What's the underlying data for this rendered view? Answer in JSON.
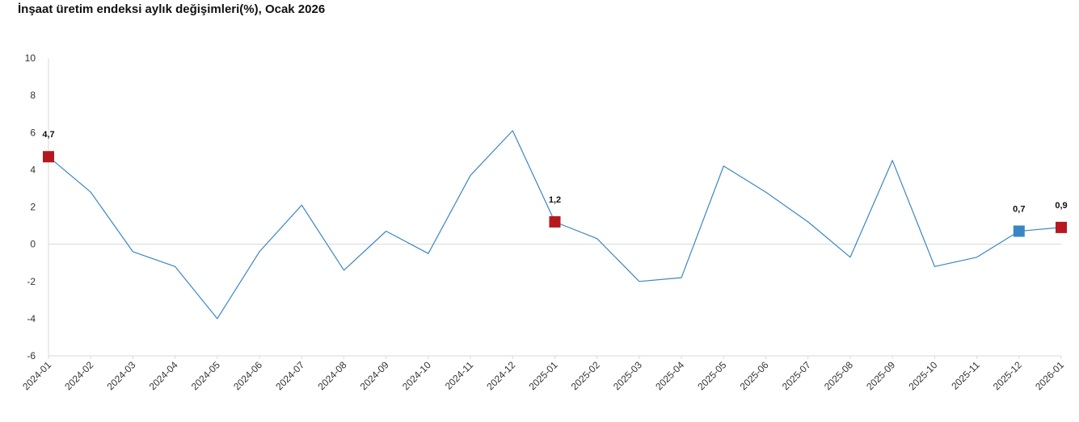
{
  "title": "İnşaat üretim endeksi aylık değişimleri(%), Ocak 2026",
  "chart_data": {
    "type": "line",
    "title": "İnşaat üretim endeksi aylık değişimleri(%), Ocak 2026",
    "xlabel": "",
    "ylabel": "",
    "ylim": [
      -6,
      10
    ],
    "yticks": [
      10,
      8,
      6,
      4,
      2,
      0,
      -2,
      -4,
      -6
    ],
    "ytick_labels": [
      "10",
      "8",
      "6",
      "4",
      "2",
      "0",
      "-2",
      "-4",
      "-6"
    ],
    "grid": false,
    "categories": [
      "2024-01",
      "2024-02",
      "2024-03",
      "2024-04",
      "2024-05",
      "2024-06",
      "2024-07",
      "2024-08",
      "2024-09",
      "2024-10",
      "2024-11",
      "2024-12",
      "2025-01",
      "2025-02",
      "2025-03",
      "2025-04",
      "2025-05",
      "2025-06",
      "2025-07",
      "2025-08",
      "2025-09",
      "2025-10",
      "2025-11",
      "2025-12",
      "2026-01"
    ],
    "series": [
      {
        "values": [
          4.7,
          2.8,
          -0.4,
          -1.2,
          -4.0,
          -0.4,
          2.1,
          -1.4,
          0.7,
          -0.5,
          3.7,
          6.1,
          1.2,
          0.3,
          -2.0,
          -1.8,
          4.2,
          2.8,
          1.2,
          -0.7,
          4.5,
          -1.2,
          -0.7,
          0.7,
          0.9
        ],
        "color": "#3a86c4"
      }
    ],
    "highlighted_points": [
      {
        "category": "2024-01",
        "value": 4.7,
        "label": "4,7",
        "color": "#b5191f"
      },
      {
        "category": "2025-01",
        "value": 1.2,
        "label": "1,2",
        "color": "#b5191f"
      },
      {
        "category": "2025-12",
        "value": 0.7,
        "label": "0,7",
        "color": "#3a86c4"
      },
      {
        "category": "2026-01",
        "value": 0.9,
        "label": "0,9",
        "color": "#b5191f"
      }
    ]
  }
}
